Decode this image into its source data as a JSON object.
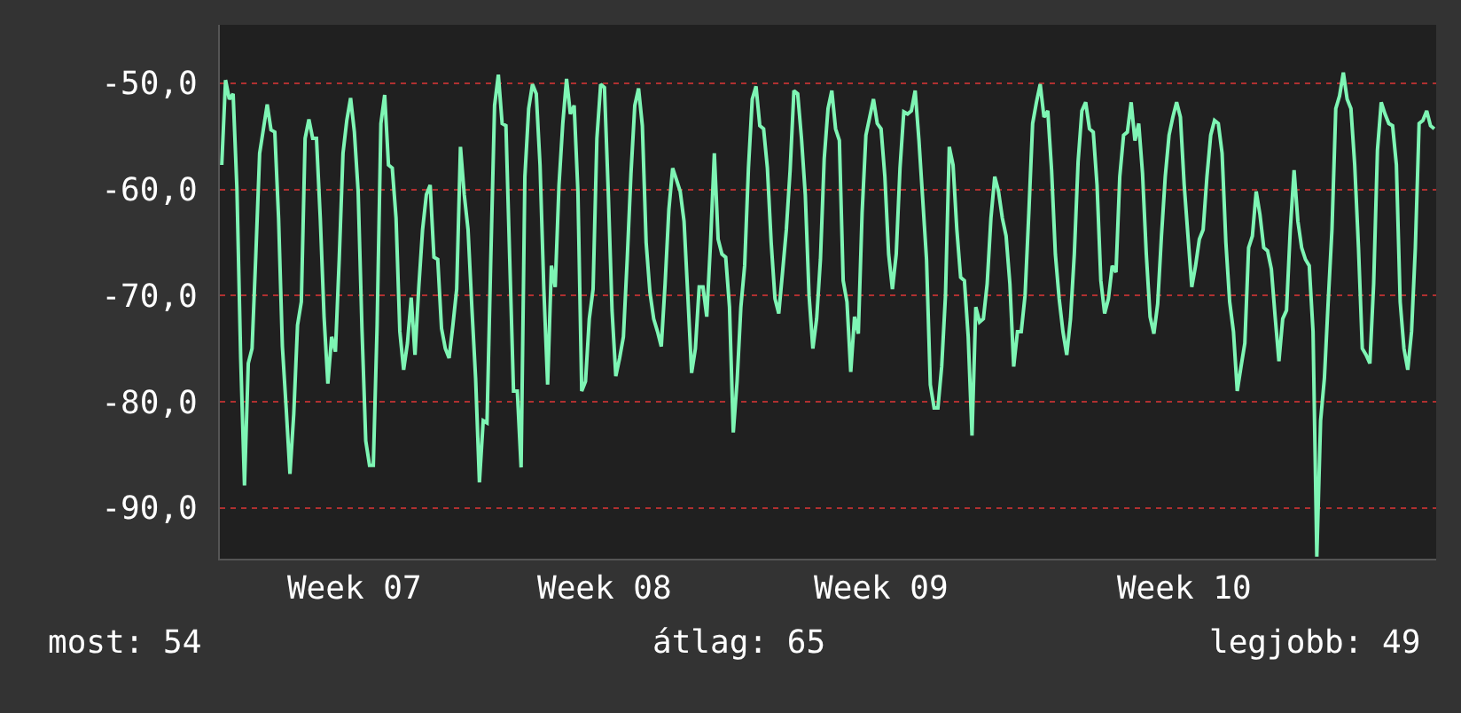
{
  "chart_data": {
    "type": "line",
    "color": "#7ef5b4",
    "grid": "y",
    "marker": "none",
    "line_style": "solid",
    "values": [
      -57.7,
      -49.7,
      -51.5,
      -51.0,
      -59.9,
      -75.9,
      -87.9,
      -76.4,
      -75.0,
      -66.1,
      -56.6,
      -54.3,
      -52.0,
      -54.4,
      -54.6,
      -62.7,
      -74.8,
      -80.6,
      -86.8,
      -81.2,
      -72.8,
      -70.6,
      -55.2,
      -53.4,
      -55.2,
      -55.2,
      -62.7,
      -72.0,
      -78.3,
      -73.9,
      -75.3,
      -66.6,
      -56.6,
      -53.5,
      -51.4,
      -54.6,
      -60.2,
      -73.1,
      -83.7,
      -86.0,
      -86.0,
      -72.8,
      -53.8,
      -51.1,
      -57.7,
      -58.0,
      -62.7,
      -73.4,
      -77.0,
      -74.5,
      -70.2,
      -75.6,
      -69.2,
      -63.8,
      -60.5,
      -59.6,
      -66.4,
      -66.6,
      -73.1,
      -75.0,
      -75.9,
      -72.8,
      -69.4,
      -56.0,
      -60.5,
      -63.8,
      -71.1,
      -77.8,
      -87.6,
      -81.8,
      -82.0,
      -66.6,
      -52.1,
      -49.2,
      -53.8,
      -54.0,
      -66.6,
      -79.0,
      -79.0,
      -86.2,
      -58.8,
      -52.4,
      -50.1,
      -51.0,
      -57.7,
      -69.4,
      -78.4,
      -67.2,
      -69.2,
      -59.6,
      -53.8,
      -49.6,
      -52.9,
      -52.1,
      -60.2,
      -79.0,
      -78.1,
      -72.2,
      -69.4,
      -55.2,
      -50.1,
      -50.4,
      -60.2,
      -71.4,
      -77.6,
      -75.9,
      -73.9,
      -66.6,
      -58.5,
      -52.1,
      -50.5,
      -54.0,
      -65.0,
      -69.7,
      -72.2,
      -73.4,
      -74.8,
      -68.9,
      -61.9,
      -58.0,
      -59.1,
      -60.2,
      -63.0,
      -70.0,
      -77.3,
      -75.0,
      -69.2,
      -69.2,
      -72.0,
      -65.0,
      -56.6,
      -64.7,
      -66.1,
      -66.4,
      -71.1,
      -82.9,
      -78.1,
      -71.1,
      -67.2,
      -58.0,
      -51.5,
      -50.3,
      -54.0,
      -54.3,
      -58.0,
      -65.0,
      -70.3,
      -71.7,
      -67.8,
      -63.8,
      -58.2,
      -50.7,
      -51.0,
      -55.2,
      -60.5,
      -70.0,
      -75.0,
      -72.2,
      -66.6,
      -57.1,
      -52.4,
      -50.7,
      -54.3,
      -55.4,
      -68.6,
      -70.6,
      -77.2,
      -72.0,
      -73.6,
      -62.2,
      -54.9,
      -53.2,
      -51.5,
      -53.8,
      -54.3,
      -58.8,
      -66.1,
      -69.4,
      -66.1,
      -58.0,
      -52.7,
      -52.9,
      -52.6,
      -50.7,
      -55.4,
      -61.0,
      -66.6,
      -78.4,
      -80.6,
      -80.6,
      -76.7,
      -70.0,
      -56.0,
      -57.7,
      -63.8,
      -68.3,
      -68.6,
      -73.9,
      -83.2,
      -71.1,
      -72.5,
      -72.2,
      -68.9,
      -62.7,
      -58.8,
      -60.2,
      -62.7,
      -64.4,
      -68.9,
      -76.7,
      -73.4,
      -73.4,
      -70.0,
      -62.2,
      -53.8,
      -51.8,
      -50.1,
      -53.2,
      -52.6,
      -58.2,
      -66.1,
      -70.3,
      -73.4,
      -75.6,
      -72.2,
      -66.1,
      -57.4,
      -52.6,
      -51.8,
      -54.3,
      -54.6,
      -59.6,
      -68.6,
      -71.7,
      -70.3,
      -67.2,
      -67.8,
      -58.8,
      -54.9,
      -54.6,
      -51.8,
      -55.4,
      -53.8,
      -58.5,
      -66.1,
      -72.0,
      -73.6,
      -70.8,
      -64.4,
      -58.8,
      -54.9,
      -53.2,
      -51.8,
      -53.2,
      -59.6,
      -64.4,
      -69.2,
      -67.2,
      -64.7,
      -63.8,
      -58.8,
      -54.9,
      -53.5,
      -53.8,
      -56.6,
      -65.0,
      -70.6,
      -73.4,
      -79.0,
      -76.7,
      -74.5,
      -65.5,
      -64.4,
      -60.2,
      -62.4,
      -65.5,
      -65.8,
      -67.5,
      -72.0,
      -76.2,
      -72.2,
      -71.4,
      -63.8,
      -58.2,
      -63.0,
      -65.5,
      -66.6,
      -67.2,
      -73.4,
      -94.6,
      -81.8,
      -77.8,
      -70.6,
      -63.8,
      -52.4,
      -51.2,
      -49.0,
      -51.5,
      -52.4,
      -57.7,
      -65.5,
      -75.0,
      -75.6,
      -76.4,
      -68.9,
      -56.3,
      -51.8,
      -52.9,
      -53.8,
      -54.0,
      -57.7,
      -70.6,
      -75.0,
      -77.0,
      -73.4,
      -65.5,
      -53.8,
      -53.5,
      -52.6,
      -54.0,
      -54.3
    ],
    "categories": [
      null,
      null,
      null,
      null,
      null,
      null,
      null,
      null,
      null,
      null,
      null,
      null,
      null,
      null,
      null,
      null,
      null,
      null,
      null,
      null,
      null,
      null,
      null,
      null,
      null,
      null,
      null,
      null,
      null,
      null,
      null,
      null,
      null,
      null,
      null,
      "Week 07",
      null,
      null,
      null,
      null,
      null,
      null,
      null,
      null,
      null,
      null,
      null,
      null,
      null,
      null,
      null,
      null,
      null,
      null,
      null,
      null,
      null,
      null,
      null,
      null,
      null,
      null,
      null,
      null,
      null,
      null,
      null,
      null,
      null,
      null,
      null,
      null,
      null,
      null,
      null,
      null,
      null,
      null,
      null,
      null,
      null,
      null,
      null,
      null,
      null,
      null,
      null,
      null,
      null,
      null,
      null,
      null,
      null,
      null,
      null,
      null,
      null,
      null,
      null,
      null,
      null,
      "Week 08",
      null,
      null,
      null,
      null,
      null,
      null,
      null,
      null,
      null,
      null,
      null,
      null,
      null,
      null,
      null,
      null,
      null,
      null,
      null,
      null,
      null,
      null,
      null,
      null,
      null,
      null,
      null,
      null,
      null,
      null,
      null,
      null,
      null,
      null,
      null,
      null,
      null,
      null,
      null,
      null,
      null,
      null,
      null,
      null,
      null,
      null,
      null,
      null,
      null,
      null,
      null,
      null,
      null,
      null,
      null,
      null,
      null,
      null,
      null,
      null,
      null,
      null,
      null,
      null,
      null,
      null,
      null,
      null,
      null,
      null,
      null,
      null,
      "Week 09",
      null,
      null,
      null,
      null,
      null,
      null,
      null,
      null,
      null,
      null,
      null,
      null,
      null,
      null,
      null,
      null,
      null,
      null,
      null,
      null,
      null,
      null,
      null,
      null,
      null,
      null,
      null,
      null,
      null,
      null,
      null,
      null,
      null,
      null,
      null,
      null,
      null,
      null,
      null,
      null,
      null,
      null,
      null,
      null,
      null,
      null,
      null,
      null,
      null,
      null,
      null,
      null,
      null,
      null,
      null,
      null,
      null,
      null,
      null,
      null,
      null,
      null,
      null,
      null,
      null,
      null,
      null,
      null,
      null,
      null,
      null,
      null,
      null,
      null,
      null,
      null,
      null,
      null,
      null,
      "Week 10",
      null,
      null,
      null,
      null,
      null,
      null,
      null,
      null,
      null,
      null,
      null,
      null,
      null,
      null,
      null,
      null,
      null,
      null,
      null,
      null,
      null,
      null,
      null,
      null,
      null,
      null,
      null,
      null,
      null,
      null,
      null,
      null,
      null,
      null,
      null,
      null,
      null,
      null,
      null,
      null,
      null,
      null,
      null,
      null,
      null,
      null,
      null,
      null,
      null,
      null,
      null,
      null,
      null,
      null,
      null,
      null,
      null,
      null,
      null,
      null,
      null,
      null,
      null,
      null,
      null,
      null
    ],
    "ylim": [
      -94.8,
      -44.5
    ],
    "yticks": [
      {
        "value": -50,
        "label": "-50,0"
      },
      {
        "value": -60,
        "label": "-60,0"
      },
      {
        "value": -70,
        "label": "-70,0"
      },
      {
        "value": -80,
        "label": "-80,0"
      },
      {
        "value": -90,
        "label": "-90,0"
      }
    ],
    "annotations": [
      "most: 54",
      "átlag: 65",
      "legjobb: 49"
    ]
  }
}
